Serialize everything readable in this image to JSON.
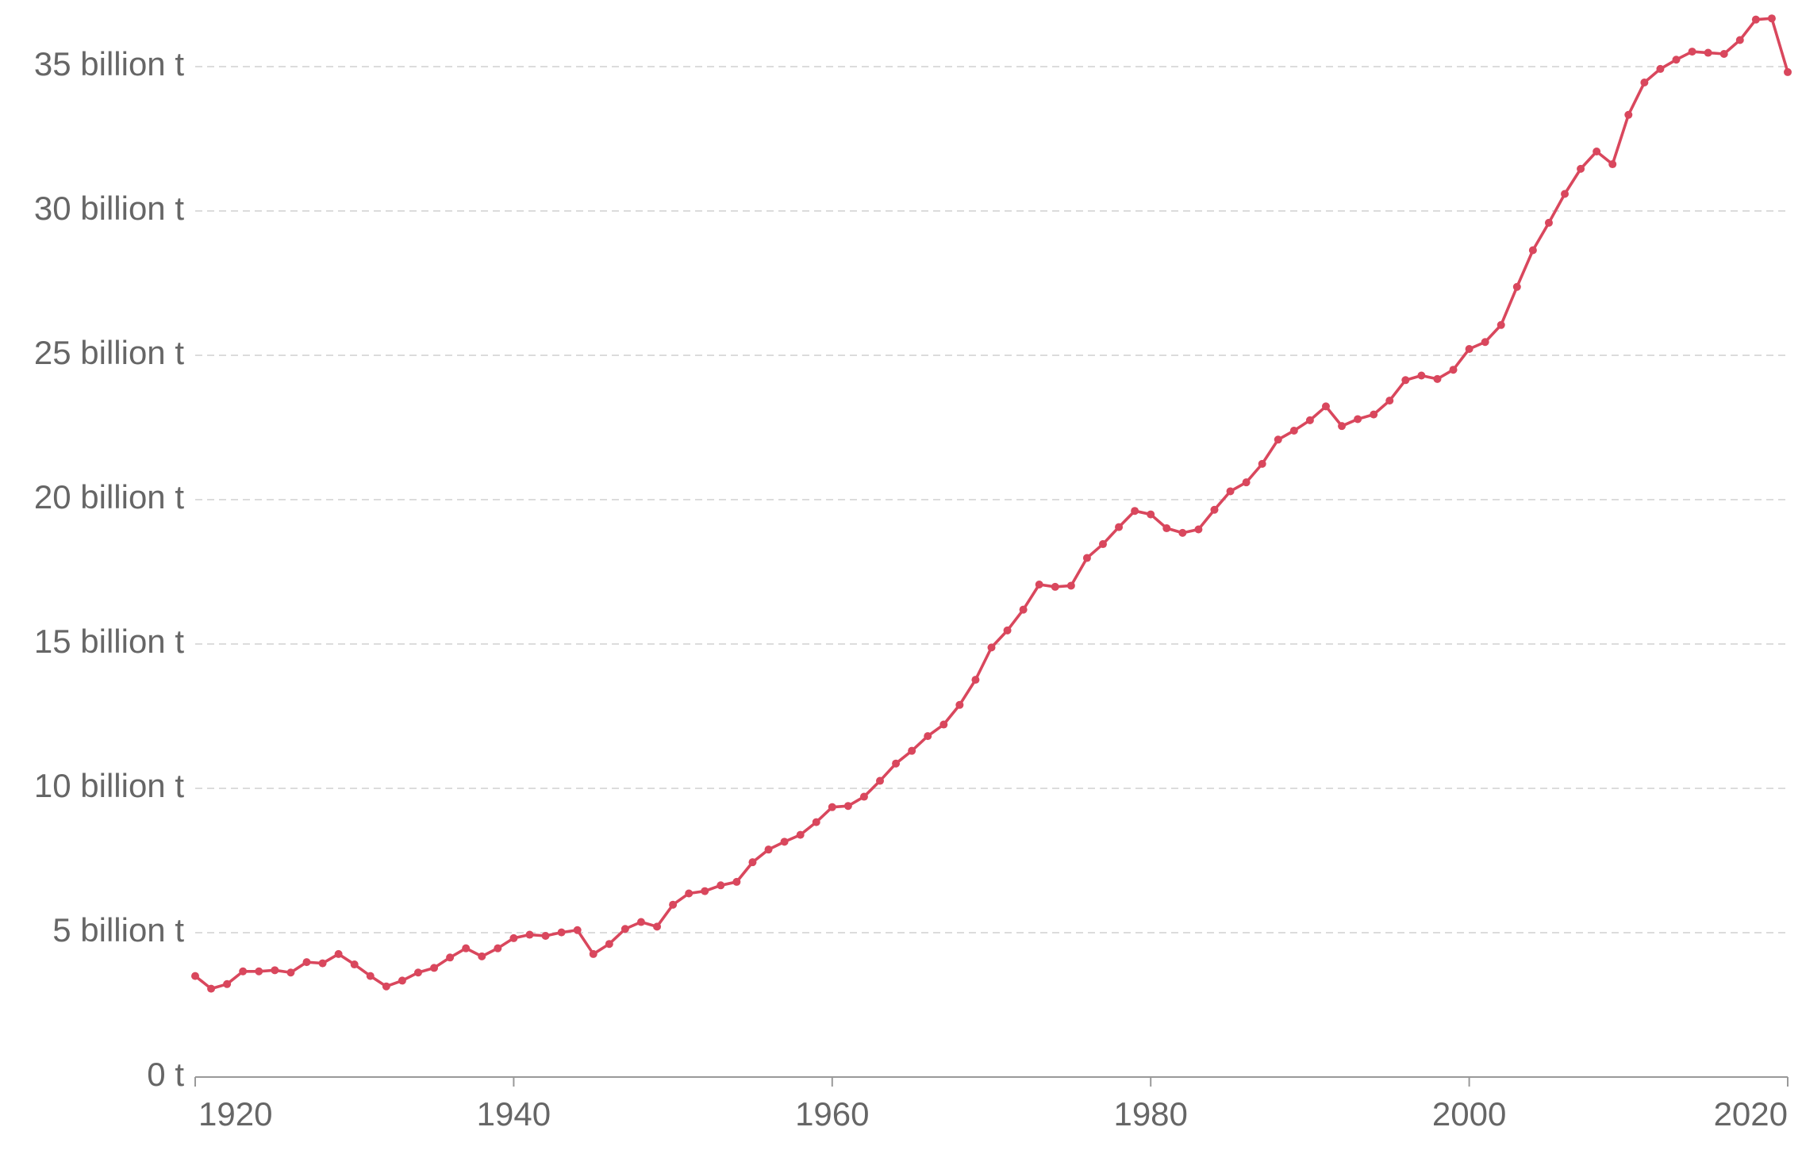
{
  "chart_data": {
    "type": "line",
    "x": [
      1920,
      1921,
      1922,
      1923,
      1924,
      1925,
      1926,
      1927,
      1928,
      1929,
      1930,
      1931,
      1932,
      1933,
      1934,
      1935,
      1936,
      1937,
      1938,
      1939,
      1940,
      1941,
      1942,
      1943,
      1944,
      1945,
      1946,
      1947,
      1948,
      1949,
      1950,
      1951,
      1952,
      1953,
      1954,
      1955,
      1956,
      1957,
      1958,
      1959,
      1960,
      1961,
      1962,
      1963,
      1964,
      1965,
      1966,
      1967,
      1968,
      1969,
      1970,
      1971,
      1972,
      1973,
      1974,
      1975,
      1976,
      1977,
      1978,
      1979,
      1980,
      1981,
      1982,
      1983,
      1984,
      1985,
      1986,
      1987,
      1988,
      1989,
      1990,
      1991,
      1992,
      1993,
      1994,
      1995,
      1996,
      1997,
      1998,
      1999,
      2000,
      2001,
      2002,
      2003,
      2004,
      2005,
      2006,
      2007,
      2008,
      2009,
      2010,
      2011,
      2012,
      2013,
      2014,
      2015,
      2016,
      2017,
      2018,
      2019,
      2020
    ],
    "series": [
      {
        "color": "#d9475d",
        "values": [
          3.5,
          3.06,
          3.22,
          3.66,
          3.66,
          3.7,
          3.62,
          3.98,
          3.94,
          4.26,
          3.9,
          3.5,
          3.14,
          3.34,
          3.62,
          3.78,
          4.14,
          4.46,
          4.18,
          4.46,
          4.81,
          4.93,
          4.89,
          5.01,
          5.09,
          4.26,
          4.61,
          5.13,
          5.37,
          5.21,
          5.97,
          6.36,
          6.44,
          6.64,
          6.76,
          7.44,
          7.88,
          8.15,
          8.39,
          8.83,
          9.35,
          9.39,
          9.71,
          10.26,
          10.86,
          11.3,
          11.81,
          12.21,
          12.89,
          13.76,
          14.88,
          15.47,
          16.19,
          17.06,
          16.98,
          17.02,
          17.98,
          18.46,
          19.05,
          19.61,
          19.49,
          19.01,
          18.85,
          18.97,
          19.65,
          20.29,
          20.6,
          21.24,
          22.08,
          22.39,
          22.75,
          23.23,
          22.55,
          22.79,
          22.95,
          23.43,
          24.14,
          24.3,
          24.18,
          24.5,
          25.22,
          25.46,
          26.05,
          27.37,
          28.64,
          29.59,
          30.59,
          31.46,
          32.06,
          31.62,
          33.33,
          34.45,
          34.92,
          35.24,
          35.52,
          35.48,
          35.44,
          35.92,
          36.63,
          36.67,
          34.81
        ]
      }
    ],
    "xlim": [
      1920,
      2020
    ],
    "xticks": [
      1920,
      1940,
      1960,
      1980,
      2000,
      2020
    ],
    "ylim": [
      0,
      35
    ],
    "yticks": [
      {
        "value": 0,
        "label": "0 t"
      },
      {
        "value": 5,
        "label": "5 billion t"
      },
      {
        "value": 10,
        "label": "10 billion t"
      },
      {
        "value": 15,
        "label": "15 billion t"
      },
      {
        "value": 20,
        "label": "20 billion t"
      },
      {
        "value": 25,
        "label": "25 billion t"
      },
      {
        "value": 30,
        "label": "30 billion t"
      },
      {
        "value": 35,
        "label": "35 billion t"
      }
    ],
    "grid": true
  }
}
